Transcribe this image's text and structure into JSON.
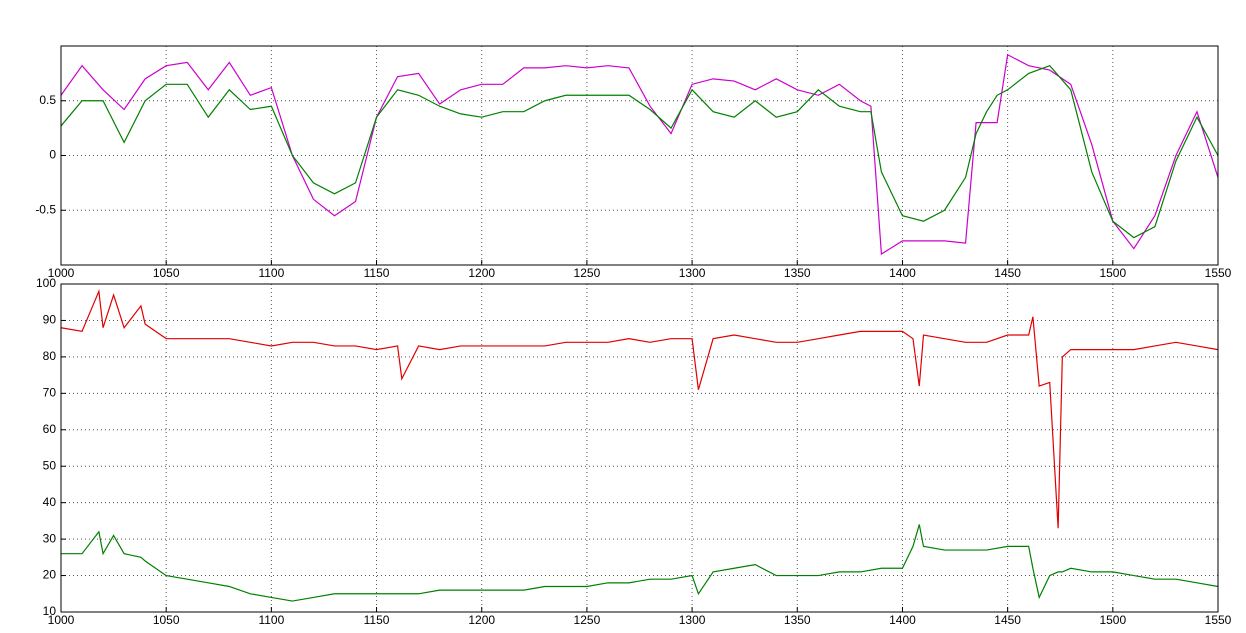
{
  "chart_data": [
    {
      "type": "line",
      "x": [
        1000,
        1010,
        1020,
        1030,
        1040,
        1050,
        1060,
        1070,
        1080,
        1090,
        1100,
        1110,
        1120,
        1130,
        1140,
        1150,
        1160,
        1170,
        1180,
        1190,
        1200,
        1210,
        1220,
        1230,
        1240,
        1250,
        1260,
        1270,
        1280,
        1290,
        1300,
        1310,
        1320,
        1330,
        1340,
        1350,
        1360,
        1370,
        1380,
        1385,
        1390,
        1400,
        1410,
        1420,
        1430,
        1435,
        1440,
        1445,
        1450,
        1460,
        1470,
        1480,
        1490,
        1500,
        1510,
        1520,
        1530,
        1540,
        1550
      ],
      "series": [
        {
          "color": "#cc00cc",
          "values": [
            0.55,
            0.82,
            0.6,
            0.42,
            0.7,
            0.82,
            0.85,
            0.6,
            0.85,
            0.55,
            0.62,
            0,
            -0.4,
            -0.55,
            -0.42,
            0.35,
            0.72,
            0.75,
            0.47,
            0.6,
            0.65,
            0.65,
            0.8,
            0.8,
            0.82,
            0.8,
            0.82,
            0.8,
            0.45,
            0.2,
            0.65,
            0.7,
            0.68,
            0.6,
            0.7,
            0.6,
            0.55,
            0.65,
            0.5,
            0.45,
            -0.9,
            -0.78,
            -0.78,
            -0.78,
            -0.8,
            0.3,
            0.3,
            0.3,
            0.92,
            0.82,
            0.78,
            0.65,
            0.1,
            -0.6,
            -0.85,
            -0.55,
            0,
            0.4,
            -0.2
          ]
        },
        {
          "color": "#008000",
          "values": [
            0.27,
            0.5,
            0.5,
            0.12,
            0.5,
            0.65,
            0.65,
            0.35,
            0.6,
            0.42,
            0.45,
            0,
            -0.25,
            -0.35,
            -0.25,
            0.35,
            0.6,
            0.55,
            0.45,
            0.38,
            0.35,
            0.4,
            0.4,
            0.5,
            0.55,
            0.55,
            0.55,
            0.55,
            0.42,
            0.25,
            0.6,
            0.4,
            0.35,
            0.5,
            0.35,
            0.4,
            0.6,
            0.45,
            0.4,
            0.4,
            -0.15,
            -0.55,
            -0.6,
            -0.5,
            -0.2,
            0.2,
            0.4,
            0.55,
            0.6,
            0.75,
            0.82,
            0.6,
            -0.15,
            -0.6,
            -0.75,
            -0.65,
            -0.05,
            0.35,
            0
          ]
        }
      ],
      "xlim": [
        1000,
        1550
      ],
      "xticks": [
        1000,
        1050,
        1100,
        1150,
        1200,
        1250,
        1300,
        1350,
        1400,
        1450,
        1500,
        1550
      ],
      "ylim": [
        -1,
        1
      ],
      "yticks": [
        -0.5,
        0,
        0.5
      ],
      "grid": true
    },
    {
      "type": "line",
      "x": [
        1000,
        1010,
        1018,
        1020,
        1025,
        1030,
        1038,
        1040,
        1050,
        1060,
        1070,
        1080,
        1090,
        1100,
        1110,
        1120,
        1130,
        1140,
        1150,
        1160,
        1162,
        1170,
        1180,
        1190,
        1200,
        1210,
        1220,
        1230,
        1240,
        1250,
        1260,
        1270,
        1280,
        1290,
        1300,
        1303,
        1310,
        1320,
        1330,
        1340,
        1350,
        1360,
        1370,
        1380,
        1390,
        1400,
        1405,
        1408,
        1410,
        1420,
        1430,
        1440,
        1450,
        1460,
        1462,
        1465,
        1470,
        1474,
        1476,
        1480,
        1490,
        1500,
        1510,
        1520,
        1530,
        1540,
        1550
      ],
      "series": [
        {
          "color": "#e00000",
          "values": [
            88,
            87,
            98,
            88,
            97,
            88,
            94,
            89,
            85,
            85,
            85,
            85,
            84,
            83,
            84,
            84,
            83,
            83,
            82,
            83,
            74,
            83,
            82,
            83,
            83,
            83,
            83,
            83,
            84,
            84,
            84,
            85,
            84,
            85,
            85,
            71,
            85,
            86,
            85,
            84,
            84,
            85,
            86,
            87,
            87,
            87,
            85,
            72,
            86,
            85,
            84,
            84,
            86,
            86,
            91,
            72,
            73,
            33,
            80,
            82,
            82,
            82,
            82,
            83,
            84,
            83,
            82
          ]
        },
        {
          "color": "#008000",
          "values": [
            26,
            26,
            32,
            26,
            31,
            26,
            25,
            24,
            20,
            19,
            18,
            17,
            15,
            14,
            13,
            14,
            15,
            15,
            15,
            15,
            15,
            15,
            16,
            16,
            16,
            16,
            16,
            17,
            17,
            17,
            18,
            18,
            19,
            19,
            20,
            15,
            21,
            22,
            23,
            20,
            20,
            20,
            21,
            21,
            22,
            22,
            28,
            34,
            28,
            27,
            27,
            27,
            28,
            28,
            22,
            14,
            20,
            21,
            21,
            22,
            21,
            21,
            20,
            19,
            19,
            18,
            17
          ]
        }
      ],
      "xlim": [
        1000,
        1550
      ],
      "xticks": [
        1000,
        1050,
        1100,
        1150,
        1200,
        1250,
        1300,
        1350,
        1400,
        1450,
        1500,
        1550
      ],
      "ylim": [
        10,
        100
      ],
      "yticks": [
        10,
        20,
        30,
        40,
        50,
        60,
        70,
        80,
        90,
        100
      ],
      "grid": true
    }
  ]
}
